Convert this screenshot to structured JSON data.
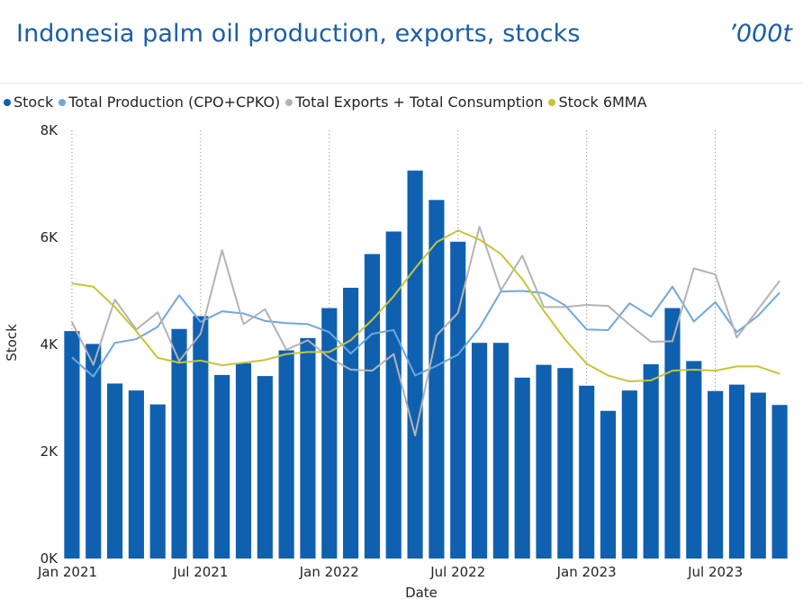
{
  "header": {
    "title": "Indonesia palm oil production, exports, stocks",
    "unit": "’000t"
  },
  "chart_data": {
    "type": "bar",
    "xlabel": "Date",
    "ylabel": "Stock",
    "ylim": [
      0,
      8000
    ],
    "y_ticks": [
      {
        "value": 0,
        "label": "0K"
      },
      {
        "value": 2000,
        "label": "2K"
      },
      {
        "value": 4000,
        "label": "4K"
      },
      {
        "value": 6000,
        "label": "6K"
      },
      {
        "value": 8000,
        "label": "8K"
      }
    ],
    "x_ticks": [
      {
        "index": 0,
        "label": "Jan 2021"
      },
      {
        "index": 6,
        "label": "Jul 2021"
      },
      {
        "index": 12,
        "label": "Jan 2022"
      },
      {
        "index": 18,
        "label": "Jul 2022"
      },
      {
        "index": 24,
        "label": "Jan 2023"
      },
      {
        "index": 30,
        "label": "Jul 2023"
      }
    ],
    "categories": [
      "Jan 2021",
      "Feb 2021",
      "Mar 2021",
      "Apr 2021",
      "May 2021",
      "Jun 2021",
      "Jul 2021",
      "Aug 2021",
      "Sep 2021",
      "Oct 2021",
      "Nov 2021",
      "Dec 2021",
      "Jan 2022",
      "Feb 2022",
      "Mar 2022",
      "Apr 2022",
      "May 2022",
      "Jun 2022",
      "Jul 2022",
      "Aug 2022",
      "Sep 2022",
      "Oct 2022",
      "Nov 2022",
      "Dec 2022",
      "Jan 2023",
      "Feb 2023",
      "Mar 2023",
      "Apr 2023",
      "May 2023",
      "Jun 2023",
      "Jul 2023",
      "Aug 2023",
      "Sep 2023",
      "Oct 2023"
    ],
    "legend_position": "top-left",
    "grid": false,
    "series": [
      {
        "name": "Stock",
        "kind": "bar",
        "color": "#1060b0",
        "values": [
          4250,
          4010,
          3270,
          3140,
          2880,
          4290,
          4530,
          3430,
          3650,
          3410,
          3890,
          4120,
          4680,
          5060,
          5690,
          6110,
          7250,
          6700,
          5920,
          4030,
          4030,
          3380,
          3620,
          3560,
          3230,
          2760,
          3140,
          3630,
          4680,
          3690,
          3130,
          3250,
          3100,
          2870
        ]
      },
      {
        "name": "Total Production (CPO+CPKO)",
        "kind": "line",
        "color": "#6fa8dc",
        "values": [
          3760,
          3400,
          4030,
          4100,
          4330,
          4920,
          4420,
          4620,
          4580,
          4440,
          4400,
          4380,
          4230,
          3830,
          4200,
          4270,
          3420,
          3600,
          3810,
          4310,
          4990,
          5000,
          4960,
          4730,
          4280,
          4270,
          4770,
          4520,
          5080,
          4430,
          4790,
          4230,
          4540,
          4970
        ]
      },
      {
        "name": "Total Exports + Total Consumption",
        "kind": "line",
        "color": "#b3b3b3",
        "values": [
          4420,
          3620,
          4840,
          4280,
          4600,
          3690,
          4200,
          5760,
          4380,
          4660,
          3900,
          4080,
          3750,
          3530,
          3510,
          3820,
          2300,
          4170,
          4590,
          6200,
          5010,
          5660,
          4700,
          4700,
          4740,
          4720,
          4370,
          4050,
          4060,
          5420,
          5310,
          4130,
          4660,
          5190
        ]
      },
      {
        "name": "Stock 6MMA",
        "kind": "line",
        "color": "#c8c43a",
        "values": [
          5140,
          5080,
          4700,
          4250,
          3750,
          3660,
          3700,
          3610,
          3660,
          3710,
          3820,
          3860,
          3860,
          4080,
          4460,
          4900,
          5420,
          5910,
          6130,
          5960,
          5690,
          5220,
          4630,
          4090,
          3640,
          3420,
          3310,
          3330,
          3510,
          3530,
          3510,
          3590,
          3590,
          3450
        ]
      }
    ]
  }
}
